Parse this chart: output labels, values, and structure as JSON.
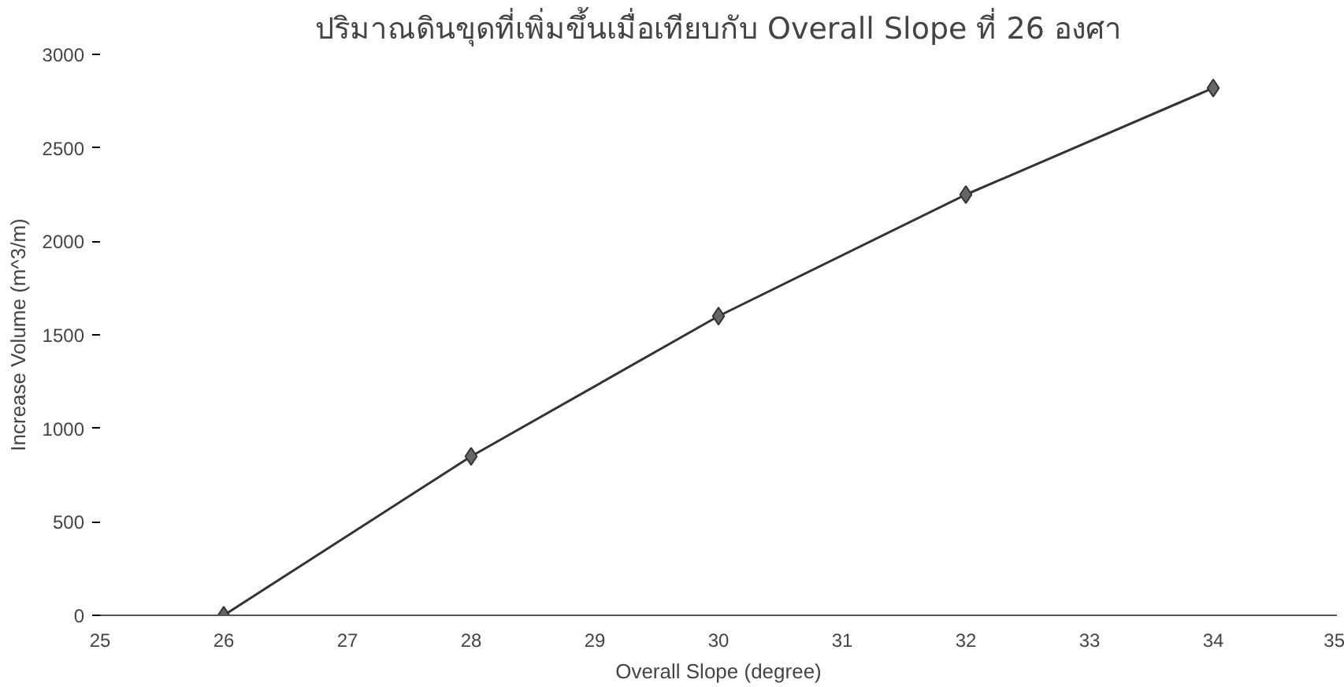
{
  "chart_data": {
    "type": "line",
    "title": "ปริมาณดินขุดที่เพิ่มขึ้นเมื่อเทียบกับ Overall Slope ที่ 26 องศา",
    "xlabel": "Overall Slope (degree)",
    "ylabel": "Increase Volume (m^3/m)",
    "x": [
      26,
      28,
      30,
      32,
      34
    ],
    "series": [
      {
        "color": "#333333",
        "values": [
          0,
          850,
          1600,
          2250,
          2820
        ]
      }
    ],
    "xlim": [
      25,
      35
    ],
    "xticks": [
      25,
      26,
      27,
      28,
      29,
      30,
      31,
      32,
      33,
      34,
      35
    ],
    "ylim": [
      0,
      3000
    ],
    "yticks": [
      0,
      500,
      1000,
      1500,
      2000,
      2500,
      3000
    ],
    "marker": "diamond",
    "line_style": "solid",
    "grid": false
  }
}
